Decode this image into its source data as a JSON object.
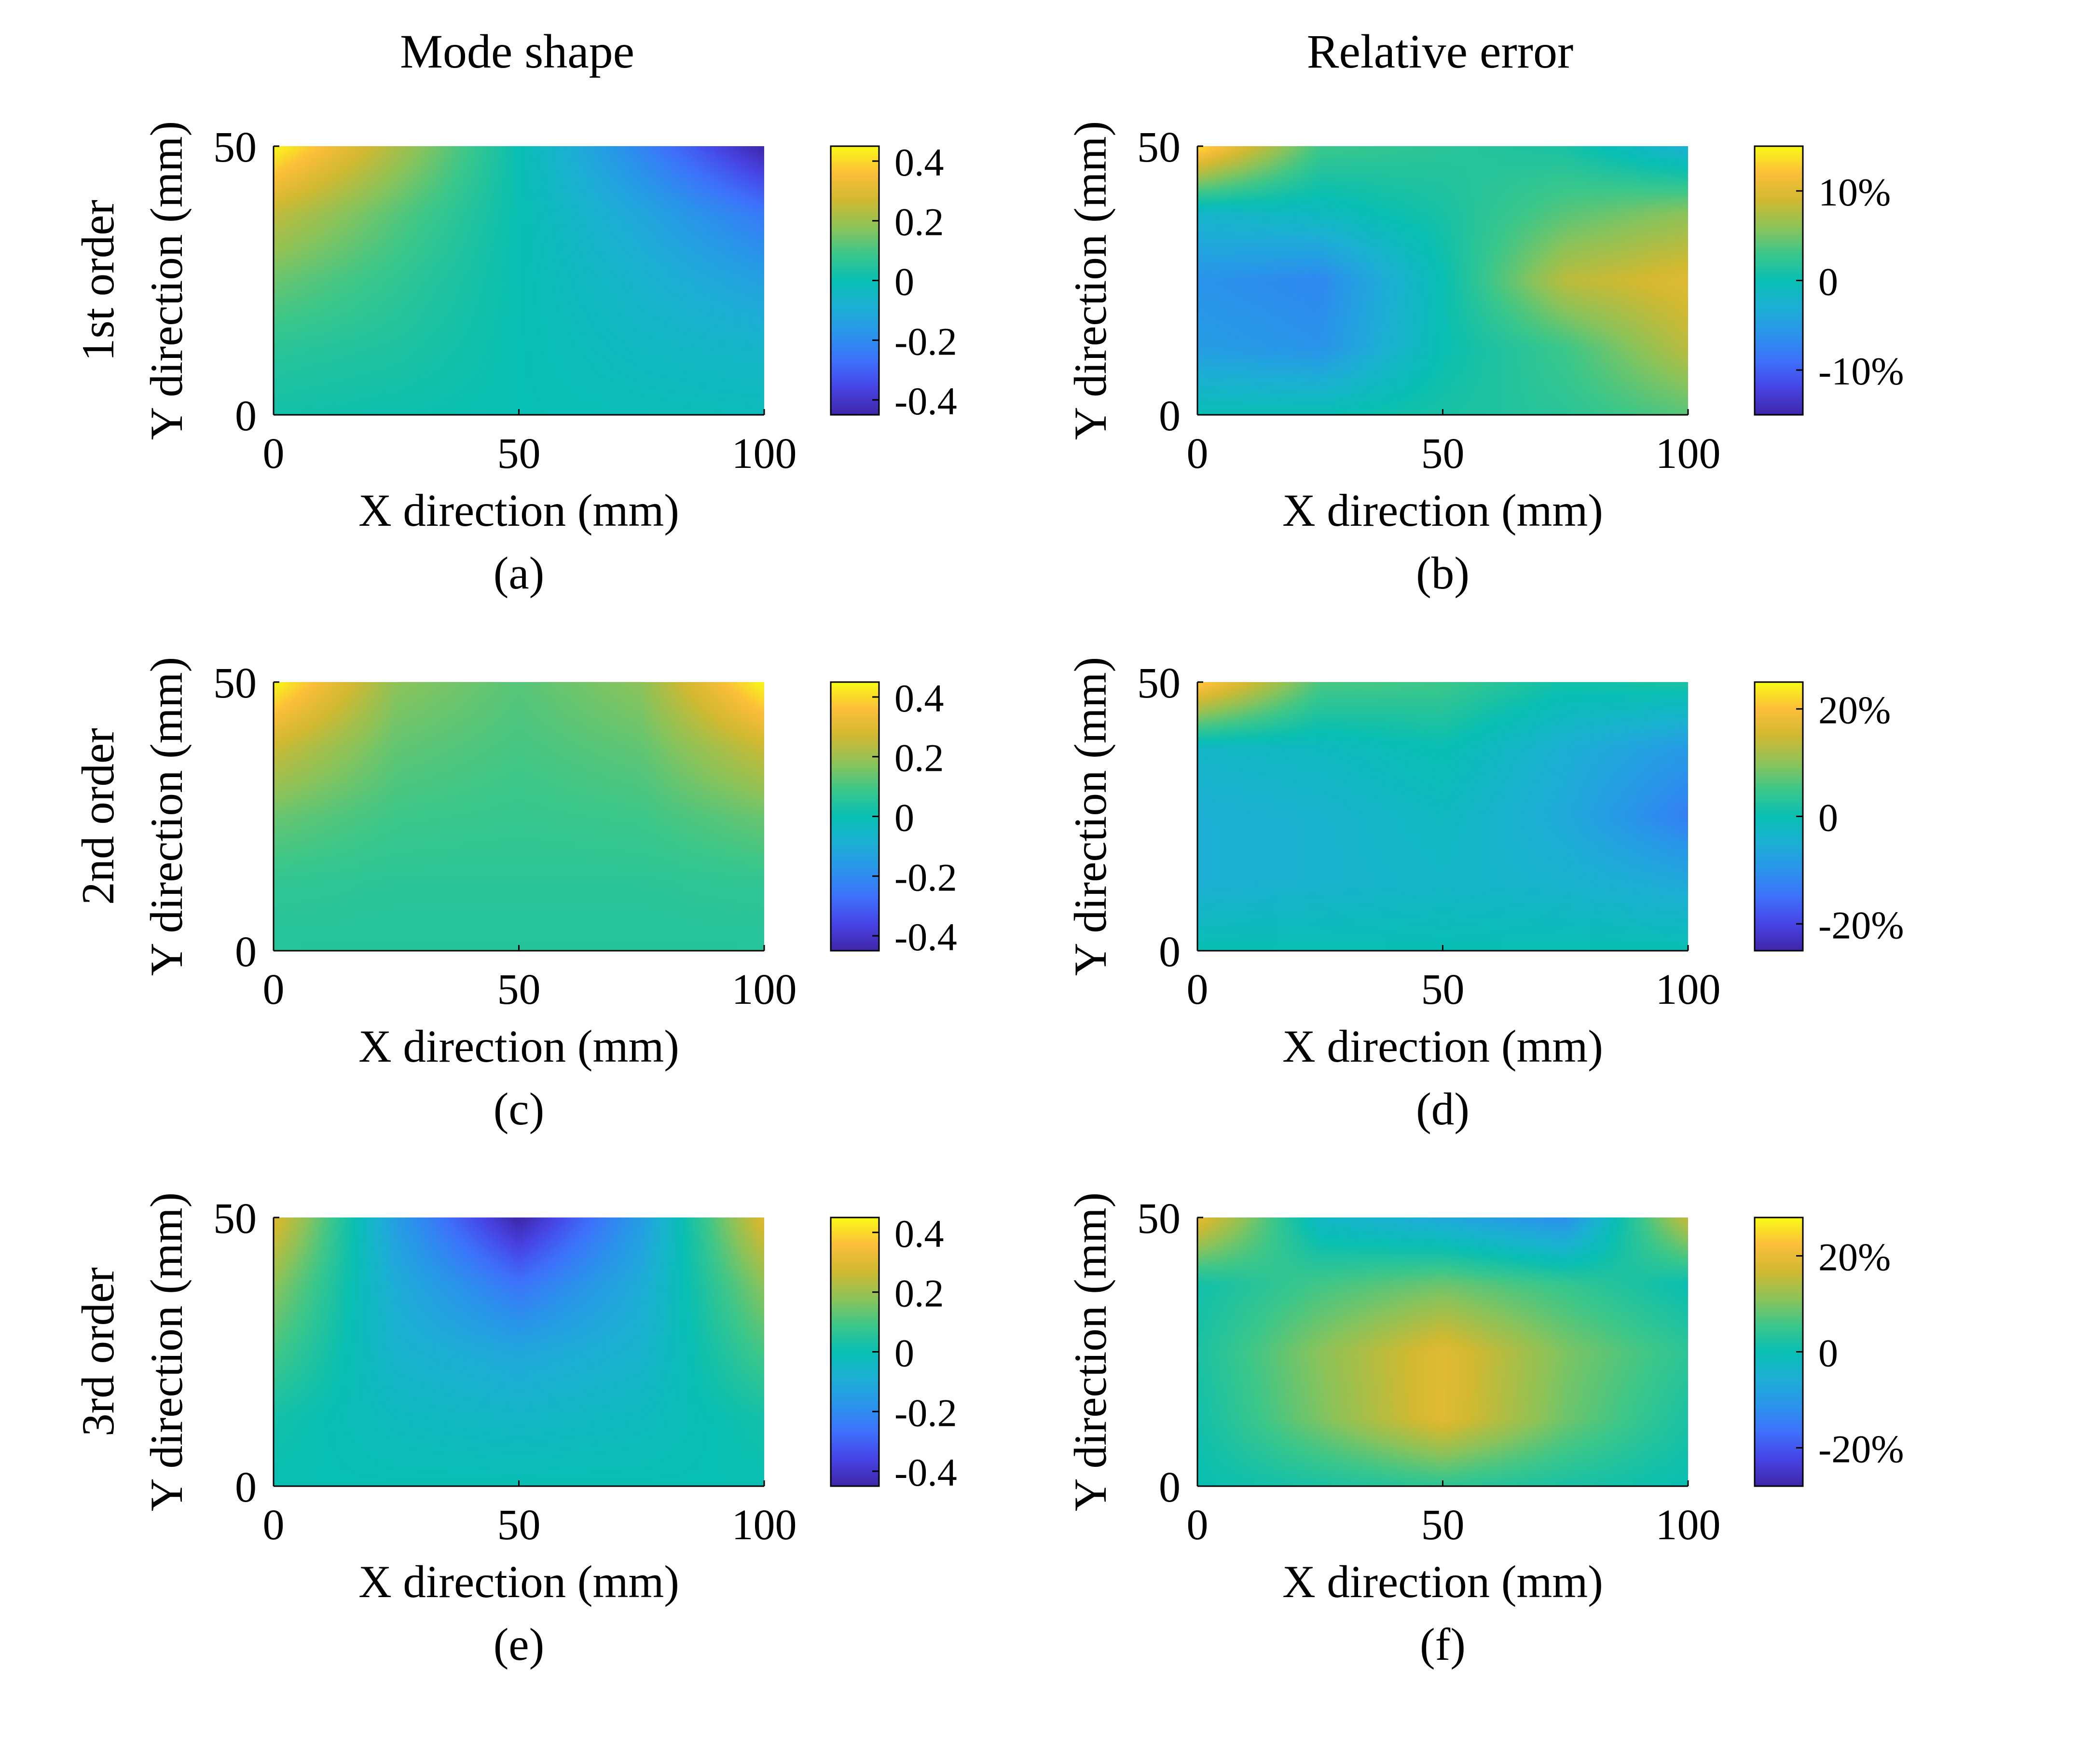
{
  "column_titles": [
    "Mode shape",
    "Relative error"
  ],
  "colormap": [
    "#3e26a8",
    "#4744e4",
    "#3e70fc",
    "#2a94eb",
    "#1cafd4",
    "#08bfb3",
    "#3cc78a",
    "#8ec358",
    "#d1b931",
    "#fcbe3a",
    "#f9fb15"
  ],
  "chart_data": [
    {
      "type": "heatmap",
      "panel": "(a)",
      "row_label": "1st order",
      "xlabel": "X direction (mm)",
      "ylabel": "Y direction (mm)",
      "xlim": [
        0,
        100
      ],
      "ylim": [
        0,
        50
      ],
      "xticks": [
        "0",
        "50",
        "100"
      ],
      "yticks": [
        "0",
        "50"
      ],
      "clim": [
        -0.45,
        0.45
      ],
      "cticks": [
        0.4,
        0.2,
        0,
        -0.2,
        -0.4
      ],
      "ctick_labels": [
        "0.4",
        "0.2",
        "0",
        "-0.2",
        "-0.4"
      ],
      "x": [
        0,
        25,
        50,
        75,
        100
      ],
      "y": [
        0,
        12.5,
        25,
        37.5,
        50
      ],
      "z": [
        [
          0.02,
          0.01,
          0.0,
          -0.01,
          -0.02
        ],
        [
          0.06,
          0.04,
          0.0,
          -0.04,
          -0.06
        ],
        [
          0.14,
          0.07,
          0.0,
          -0.07,
          -0.14
        ],
        [
          0.25,
          0.12,
          0.0,
          -0.12,
          -0.25
        ],
        [
          0.45,
          0.22,
          0.0,
          -0.22,
          -0.45
        ]
      ]
    },
    {
      "type": "heatmap",
      "panel": "(b)",
      "row_label": "",
      "xlabel": "X direction (mm)",
      "ylabel": "Y direction (mm)",
      "xlim": [
        0,
        100
      ],
      "ylim": [
        0,
        50
      ],
      "xticks": [
        "0",
        "50",
        "100"
      ],
      "yticks": [
        "0",
        "50"
      ],
      "clim": [
        -15,
        15
      ],
      "cticks": [
        10,
        0,
        -10
      ],
      "ctick_labels": [
        "10%",
        "0",
        "-10%"
      ],
      "x": [
        0,
        25,
        50,
        75,
        100
      ],
      "y": [
        0,
        12.5,
        25,
        37.5,
        50
      ],
      "z": [
        [
          0,
          0,
          1,
          2,
          4
        ],
        [
          -5,
          -6,
          0,
          3,
          8
        ],
        [
          -6,
          -7,
          0,
          8,
          10
        ],
        [
          -2,
          -1,
          1,
          4,
          6
        ],
        [
          14,
          3,
          2,
          1,
          -3
        ]
      ]
    },
    {
      "type": "heatmap",
      "panel": "(c)",
      "row_label": "2nd order",
      "xlabel": "X direction (mm)",
      "ylabel": "Y direction (mm)",
      "xlim": [
        0,
        100
      ],
      "ylim": [
        0,
        50
      ],
      "xticks": [
        "0",
        "50",
        "100"
      ],
      "yticks": [
        "0",
        "50"
      ],
      "clim": [
        -0.45,
        0.45
      ],
      "cticks": [
        0.4,
        0.2,
        0,
        -0.2,
        -0.4
      ],
      "ctick_labels": [
        "0.4",
        "0.2",
        "0",
        "-0.2",
        "-0.4"
      ],
      "x": [
        0,
        25,
        50,
        75,
        100
      ],
      "y": [
        0,
        12.5,
        25,
        37.5,
        50
      ],
      "z": [
        [
          0.05,
          0.05,
          0.05,
          0.05,
          0.05
        ],
        [
          0.07,
          0.06,
          0.06,
          0.06,
          0.07
        ],
        [
          0.14,
          0.09,
          0.08,
          0.09,
          0.14
        ],
        [
          0.26,
          0.13,
          0.1,
          0.13,
          0.26
        ],
        [
          0.45,
          0.18,
          0.12,
          0.18,
          0.45
        ]
      ]
    },
    {
      "type": "heatmap",
      "panel": "(d)",
      "row_label": "",
      "xlabel": "X direction (mm)",
      "ylabel": "Y direction (mm)",
      "xlim": [
        0,
        100
      ],
      "ylim": [
        0,
        50
      ],
      "xticks": [
        "0",
        "50",
        "100"
      ],
      "yticks": [
        "0",
        "50"
      ],
      "clim": [
        -25,
        25
      ],
      "cticks": [
        20,
        0,
        -20
      ],
      "ctick_labels": [
        "20%",
        "0",
        "-20%"
      ],
      "x": [
        0,
        25,
        50,
        75,
        100
      ],
      "y": [
        0,
        12.5,
        25,
        37.5,
        50
      ],
      "z": [
        [
          0,
          0,
          0,
          0,
          0
        ],
        [
          -5,
          -4,
          -3,
          -4,
          -6
        ],
        [
          -5,
          -4,
          -2,
          -6,
          -13
        ],
        [
          -3,
          -2,
          0,
          -5,
          -9
        ],
        [
          22,
          6,
          5,
          1,
          2
        ]
      ]
    },
    {
      "type": "heatmap",
      "panel": "(e)",
      "row_label": "3rd order",
      "xlabel": "X direction (mm)",
      "ylabel": "Y direction (mm)",
      "xlim": [
        0,
        100
      ],
      "ylim": [
        0,
        50
      ],
      "xticks": [
        "0",
        "50",
        "100"
      ],
      "yticks": [
        "0",
        "50"
      ],
      "clim": [
        -0.45,
        0.45
      ],
      "cticks": [
        0.4,
        0.2,
        0,
        -0.2,
        -0.4
      ],
      "ctick_labels": [
        "0.4",
        "0.2",
        "0",
        "-0.2",
        "-0.4"
      ],
      "x": [
        0,
        25,
        50,
        75,
        100
      ],
      "y": [
        0,
        12.5,
        25,
        37.5,
        50
      ],
      "z": [
        [
          0.0,
          0.0,
          0.0,
          0.0,
          0.0
        ],
        [
          0.02,
          -0.03,
          -0.05,
          -0.03,
          0.02
        ],
        [
          0.1,
          -0.07,
          -0.12,
          -0.07,
          0.1
        ],
        [
          0.18,
          -0.1,
          -0.26,
          -0.1,
          0.18
        ],
        [
          0.3,
          -0.15,
          -0.45,
          -0.15,
          0.3
        ]
      ]
    },
    {
      "type": "heatmap",
      "panel": "(f)",
      "row_label": "",
      "xlabel": "X direction (mm)",
      "ylabel": "Y direction (mm)",
      "xlim": [
        0,
        100
      ],
      "ylim": [
        0,
        50
      ],
      "xticks": [
        "0",
        "50",
        "100"
      ],
      "yticks": [
        "0",
        "50"
      ],
      "clim": [
        -28,
        28
      ],
      "cticks": [
        20,
        0,
        -20
      ],
      "ctick_labels": [
        "20%",
        "0",
        "-20%"
      ],
      "x": [
        0,
        25,
        50,
        75,
        100
      ],
      "y": [
        0,
        12.5,
        25,
        37.5,
        50
      ],
      "z": [
        [
          0,
          2,
          4,
          2,
          0
        ],
        [
          1,
          10,
          19,
          9,
          2
        ],
        [
          2,
          11,
          19,
          10,
          4
        ],
        [
          1,
          6,
          9,
          5,
          0
        ],
        [
          20,
          -3,
          -7,
          -12,
          16
        ]
      ]
    }
  ]
}
